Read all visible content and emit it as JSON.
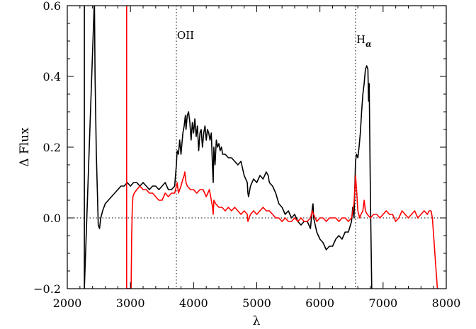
{
  "chart_data": {
    "type": "line",
    "xlabel": "λ",
    "ylabel": "Δ Flux",
    "xlim": [
      2000,
      8000
    ],
    "ylim": [
      -0.2,
      0.6
    ],
    "xticks": [
      2000,
      3000,
      4000,
      5000,
      6000,
      7000,
      8000
    ],
    "xtick_labels": [
      "2000",
      "3000",
      "4000",
      "5000",
      "6000",
      "7000",
      "8000"
    ],
    "yticks": [
      -0.2,
      0.0,
      0.2,
      0.4,
      0.6
    ],
    "ytick_labels": [
      "−0.2",
      "0.0",
      "0.2",
      "0.4",
      "0.6"
    ],
    "grid": false,
    "reference_lines": {
      "horizontal_dotted_y": 0.0,
      "vertical_dotted_x": [
        3727,
        6563
      ]
    },
    "annotations": [
      {
        "text": "OII",
        "x": 3727
      },
      {
        "text": "H",
        "subscript": "α",
        "x": 6563
      }
    ],
    "series": [
      {
        "color": "#000000",
        "points": [
          [
            2270,
            0.62
          ],
          [
            2270,
            -0.2
          ],
          [
            2430,
            0.62
          ],
          [
            2440,
            0.4
          ],
          [
            2460,
            0.18
          ],
          [
            2480,
            0.05
          ],
          [
            2490,
            -0.02
          ],
          [
            2510,
            -0.03
          ],
          [
            2530,
            0.0
          ],
          [
            2560,
            0.02
          ],
          [
            2600,
            0.04
          ],
          [
            2650,
            0.05
          ],
          [
            2700,
            0.06
          ],
          [
            2750,
            0.07
          ],
          [
            2800,
            0.08
          ],
          [
            2850,
            0.09
          ],
          [
            2900,
            0.09
          ],
          [
            2950,
            0.1
          ],
          [
            3000,
            0.09
          ],
          [
            3050,
            0.1
          ],
          [
            3100,
            0.1
          ],
          [
            3150,
            0.09
          ],
          [
            3200,
            0.1
          ],
          [
            3250,
            0.09
          ],
          [
            3300,
            0.08
          ],
          [
            3350,
            0.09
          ],
          [
            3400,
            0.09
          ],
          [
            3450,
            0.08
          ],
          [
            3500,
            0.09
          ],
          [
            3550,
            0.1
          ],
          [
            3600,
            0.08
          ],
          [
            3650,
            0.08
          ],
          [
            3700,
            0.09
          ],
          [
            3727,
            0.15
          ],
          [
            3740,
            0.19
          ],
          [
            3760,
            0.18
          ],
          [
            3780,
            0.22
          ],
          [
            3800,
            0.18
          ],
          [
            3830,
            0.24
          ],
          [
            3850,
            0.26
          ],
          [
            3870,
            0.29
          ],
          [
            3880,
            0.25
          ],
          [
            3900,
            0.29
          ],
          [
            3920,
            0.3
          ],
          [
            3940,
            0.27
          ],
          [
            3960,
            0.22
          ],
          [
            3980,
            0.27
          ],
          [
            4000,
            0.24
          ],
          [
            4020,
            0.28
          ],
          [
            4040,
            0.23
          ],
          [
            4060,
            0.26
          ],
          [
            4080,
            0.19
          ],
          [
            4100,
            0.24
          ],
          [
            4120,
            0.25
          ],
          [
            4140,
            0.2
          ],
          [
            4160,
            0.24
          ],
          [
            4180,
            0.26
          ],
          [
            4200,
            0.22
          ],
          [
            4220,
            0.25
          ],
          [
            4240,
            0.24
          ],
          [
            4260,
            0.22
          ],
          [
            4280,
            0.24
          ],
          [
            4300,
            0.14
          ],
          [
            4310,
            0.1
          ],
          [
            4320,
            0.2
          ],
          [
            4340,
            0.15
          ],
          [
            4360,
            0.22
          ],
          [
            4380,
            0.2
          ],
          [
            4400,
            0.21
          ],
          [
            4420,
            0.19
          ],
          [
            4440,
            0.2
          ],
          [
            4460,
            0.18
          ],
          [
            4500,
            0.18
          ],
          [
            4550,
            0.17
          ],
          [
            4600,
            0.17
          ],
          [
            4650,
            0.16
          ],
          [
            4700,
            0.15
          ],
          [
            4750,
            0.16
          ],
          [
            4800,
            0.12
          ],
          [
            4850,
            0.1
          ],
          [
            4860,
            0.07
          ],
          [
            4870,
            0.06
          ],
          [
            4900,
            0.09
          ],
          [
            4950,
            0.11
          ],
          [
            5000,
            0.1
          ],
          [
            5050,
            0.12
          ],
          [
            5100,
            0.11
          ],
          [
            5150,
            0.13
          ],
          [
            5180,
            0.12
          ],
          [
            5200,
            0.1
          ],
          [
            5250,
            0.09
          ],
          [
            5300,
            0.07
          ],
          [
            5350,
            0.04
          ],
          [
            5400,
            0.03
          ],
          [
            5450,
            0.01
          ],
          [
            5500,
            0.02
          ],
          [
            5550,
            0.0
          ],
          [
            5600,
            0.01
          ],
          [
            5650,
            -0.01
          ],
          [
            5700,
            -0.02
          ],
          [
            5750,
            -0.01
          ],
          [
            5800,
            -0.01
          ],
          [
            5850,
            -0.03
          ],
          [
            5880,
            0.03
          ],
          [
            5890,
            0.04
          ],
          [
            5900,
            0.0
          ],
          [
            5950,
            -0.04
          ],
          [
            6000,
            -0.06
          ],
          [
            6050,
            -0.07
          ],
          [
            6100,
            -0.09
          ],
          [
            6150,
            -0.08
          ],
          [
            6200,
            -0.08
          ],
          [
            6250,
            -0.06
          ],
          [
            6300,
            -0.05
          ],
          [
            6350,
            -0.06
          ],
          [
            6400,
            -0.04
          ],
          [
            6450,
            -0.04
          ],
          [
            6500,
            -0.01
          ],
          [
            6520,
            0.03
          ],
          [
            6540,
            0.0
          ],
          [
            6563,
            0.16
          ],
          [
            6580,
            0.18
          ],
          [
            6600,
            0.17
          ],
          [
            6620,
            0.2
          ],
          [
            6640,
            0.24
          ],
          [
            6660,
            0.3
          ],
          [
            6680,
            0.35
          ],
          [
            6700,
            0.38
          ],
          [
            6720,
            0.42
          ],
          [
            6740,
            0.43
          ],
          [
            6760,
            0.42
          ],
          [
            6770,
            0.33
          ],
          [
            6780,
            0.38
          ],
          [
            6800,
            0.05
          ],
          [
            6820,
            -0.2
          ]
        ]
      },
      {
        "color": "#ff0000",
        "points": [
          [
            2940,
            0.62
          ],
          [
            2940,
            -0.2
          ],
          [
            3010,
            -0.2
          ],
          [
            3020,
            -0.05
          ],
          [
            3030,
            0.03
          ],
          [
            3040,
            0.06
          ],
          [
            3060,
            0.07
          ],
          [
            3100,
            0.08
          ],
          [
            3150,
            0.09
          ],
          [
            3200,
            0.08
          ],
          [
            3250,
            0.08
          ],
          [
            3300,
            0.07
          ],
          [
            3350,
            0.07
          ],
          [
            3400,
            0.06
          ],
          [
            3450,
            0.05
          ],
          [
            3500,
            0.05
          ],
          [
            3550,
            0.07
          ],
          [
            3600,
            0.06
          ],
          [
            3650,
            0.07
          ],
          [
            3700,
            0.07
          ],
          [
            3727,
            0.09
          ],
          [
            3740,
            0.1
          ],
          [
            3760,
            0.07
          ],
          [
            3800,
            0.09
          ],
          [
            3830,
            0.11
          ],
          [
            3850,
            0.12
          ],
          [
            3860,
            0.13
          ],
          [
            3880,
            0.1
          ],
          [
            3900,
            0.09
          ],
          [
            3950,
            0.08
          ],
          [
            4000,
            0.08
          ],
          [
            4050,
            0.07
          ],
          [
            4100,
            0.08
          ],
          [
            4150,
            0.08
          ],
          [
            4200,
            0.06
          ],
          [
            4250,
            0.08
          ],
          [
            4300,
            0.03
          ],
          [
            4310,
            0.01
          ],
          [
            4320,
            0.05
          ],
          [
            4350,
            0.04
          ],
          [
            4400,
            0.03
          ],
          [
            4450,
            0.03
          ],
          [
            4500,
            0.02
          ],
          [
            4550,
            0.03
          ],
          [
            4600,
            0.02
          ],
          [
            4650,
            0.03
          ],
          [
            4700,
            0.02
          ],
          [
            4750,
            0.01
          ],
          [
            4800,
            0.02
          ],
          [
            4850,
            0.01
          ],
          [
            4860,
            -0.01
          ],
          [
            4900,
            0.01
          ],
          [
            4950,
            0.02
          ],
          [
            5000,
            0.01
          ],
          [
            5050,
            0.02
          ],
          [
            5100,
            0.03
          ],
          [
            5150,
            0.02
          ],
          [
            5200,
            0.02
          ],
          [
            5250,
            0.01
          ],
          [
            5300,
            0.0
          ],
          [
            5350,
            0.0
          ],
          [
            5400,
            -0.01
          ],
          [
            5450,
            0.0
          ],
          [
            5500,
            -0.01
          ],
          [
            5550,
            -0.01
          ],
          [
            5600,
            0.0
          ],
          [
            5650,
            -0.01
          ],
          [
            5700,
            0.0
          ],
          [
            5750,
            -0.01
          ],
          [
            5800,
            -0.01
          ],
          [
            5850,
            0.0
          ],
          [
            5880,
            0.02
          ],
          [
            5900,
            0.01
          ],
          [
            5950,
            -0.01
          ],
          [
            6000,
            0.0
          ],
          [
            6050,
            0.0
          ],
          [
            6100,
            -0.01
          ],
          [
            6150,
            0.0
          ],
          [
            6200,
            0.0
          ],
          [
            6250,
            0.0
          ],
          [
            6300,
            -0.01
          ],
          [
            6350,
            0.0
          ],
          [
            6400,
            0.0
          ],
          [
            6450,
            -0.01
          ],
          [
            6500,
            0.0
          ],
          [
            6540,
            0.04
          ],
          [
            6563,
            0.12
          ],
          [
            6580,
            0.08
          ],
          [
            6600,
            0.02
          ],
          [
            6630,
            0.0
          ],
          [
            6650,
            0.01
          ],
          [
            6680,
            0.02
          ],
          [
            6700,
            0.05
          ],
          [
            6720,
            0.02
          ],
          [
            6750,
            0.01
          ],
          [
            6800,
            0.0
          ],
          [
            6850,
            0.01
          ],
          [
            6900,
            0.01
          ],
          [
            6950,
            0.0
          ],
          [
            7000,
            0.01
          ],
          [
            7050,
            0.02
          ],
          [
            7100,
            0.01
          ],
          [
            7150,
            0.01
          ],
          [
            7200,
            -0.01
          ],
          [
            7250,
            0.0
          ],
          [
            7300,
            0.02
          ],
          [
            7350,
            0.01
          ],
          [
            7400,
            0.0
          ],
          [
            7450,
            0.01
          ],
          [
            7500,
            0.02
          ],
          [
            7550,
            0.0
          ],
          [
            7600,
            0.01
          ],
          [
            7650,
            0.02
          ],
          [
            7700,
            0.01
          ],
          [
            7730,
            0.02
          ],
          [
            7760,
            0.02
          ],
          [
            7780,
            0.0
          ],
          [
            7800,
            -0.05
          ],
          [
            7820,
            -0.1
          ],
          [
            7840,
            -0.15
          ],
          [
            7860,
            -0.2
          ]
        ]
      }
    ]
  }
}
